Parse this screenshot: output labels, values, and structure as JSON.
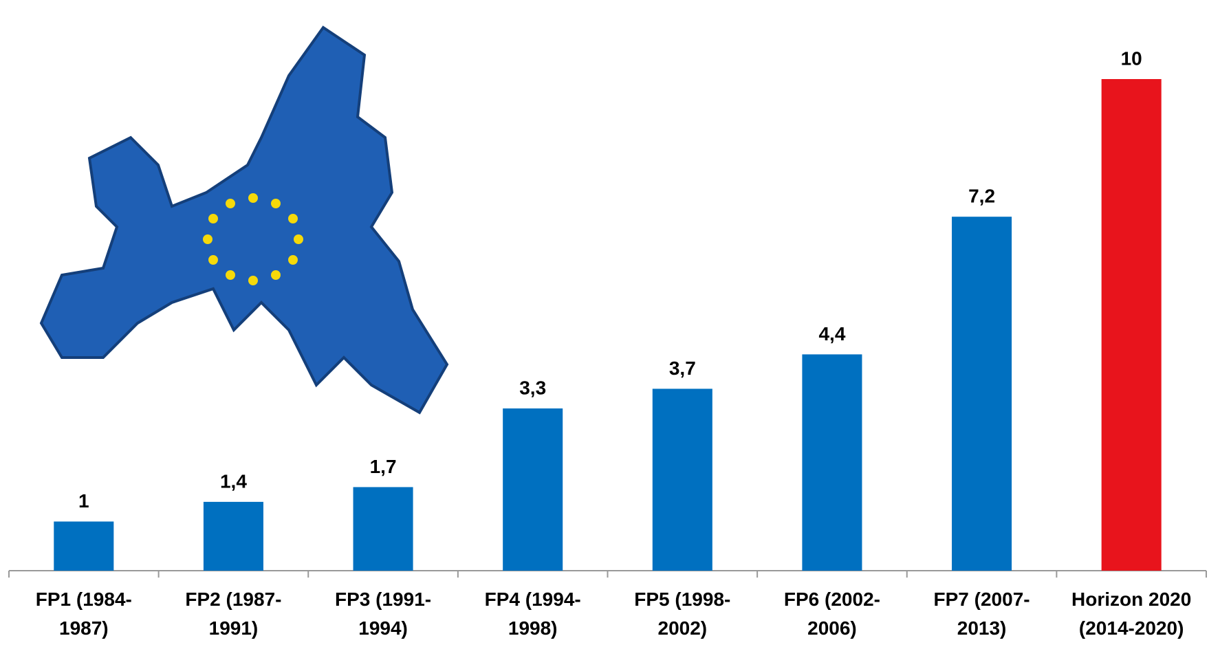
{
  "chart_data": {
    "type": "bar",
    "categories": [
      "FP1 (1984-1987)",
      "FP2 (1987-1991)",
      "FP3 (1991-1994)",
      "FP4 (1994-1998)",
      "FP5 (1998-2002)",
      "FP6 (2002-2006)",
      "FP7 (2007-2013)",
      "Horizon 2020 (2014-2020)"
    ],
    "values": [
      1,
      1.4,
      1.7,
      3.3,
      3.7,
      4.4,
      7.2,
      10
    ],
    "value_labels": [
      "1",
      "1,4",
      "1,7",
      "3,3",
      "3,7",
      "4,4",
      "7,2",
      "10"
    ],
    "colors": [
      "#0070c0",
      "#0070c0",
      "#0070c0",
      "#0070c0",
      "#0070c0",
      "#0070c0",
      "#0070c0",
      "#e8141c"
    ],
    "ylim": [
      0,
      11
    ]
  }
}
